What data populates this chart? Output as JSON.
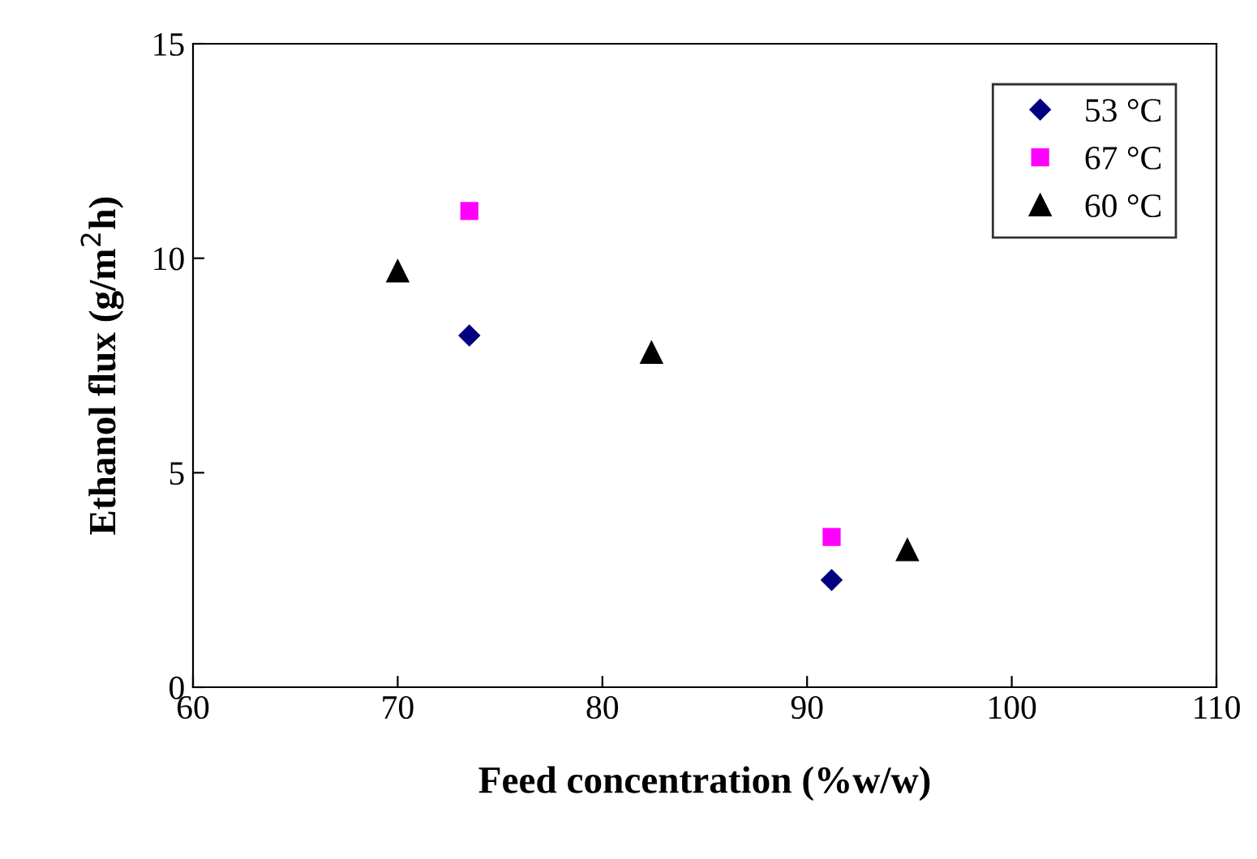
{
  "chart_data": {
    "type": "scatter",
    "xlabel": "Feed concentration (%w/w)",
    "ylabel": "Ethanol flux (g/m$^{2}$h)",
    "xlim": [
      60,
      110
    ],
    "xticks": [
      60,
      70,
      80,
      90,
      100,
      110
    ],
    "ylim": [
      0,
      15
    ],
    "yticks": [
      0,
      5,
      10,
      15
    ],
    "grid": false,
    "legend": "top right",
    "series": [
      {
        "name": "53 °C",
        "color": "#000080",
        "marker": "diamond",
        "x": [
          73.5,
          91.2
        ],
        "values": [
          8.2,
          2.5
        ]
      },
      {
        "name": "67 °C",
        "color": "#ff00ff",
        "marker": "square",
        "x": [
          73.5,
          91.2
        ],
        "values": [
          11.1,
          3.5
        ]
      },
      {
        "name": "60 °C",
        "color": "#000000",
        "marker": "triangle",
        "x": [
          70,
          82.4,
          94.9
        ],
        "values": [
          9.7,
          7.8,
          3.2
        ]
      }
    ]
  }
}
